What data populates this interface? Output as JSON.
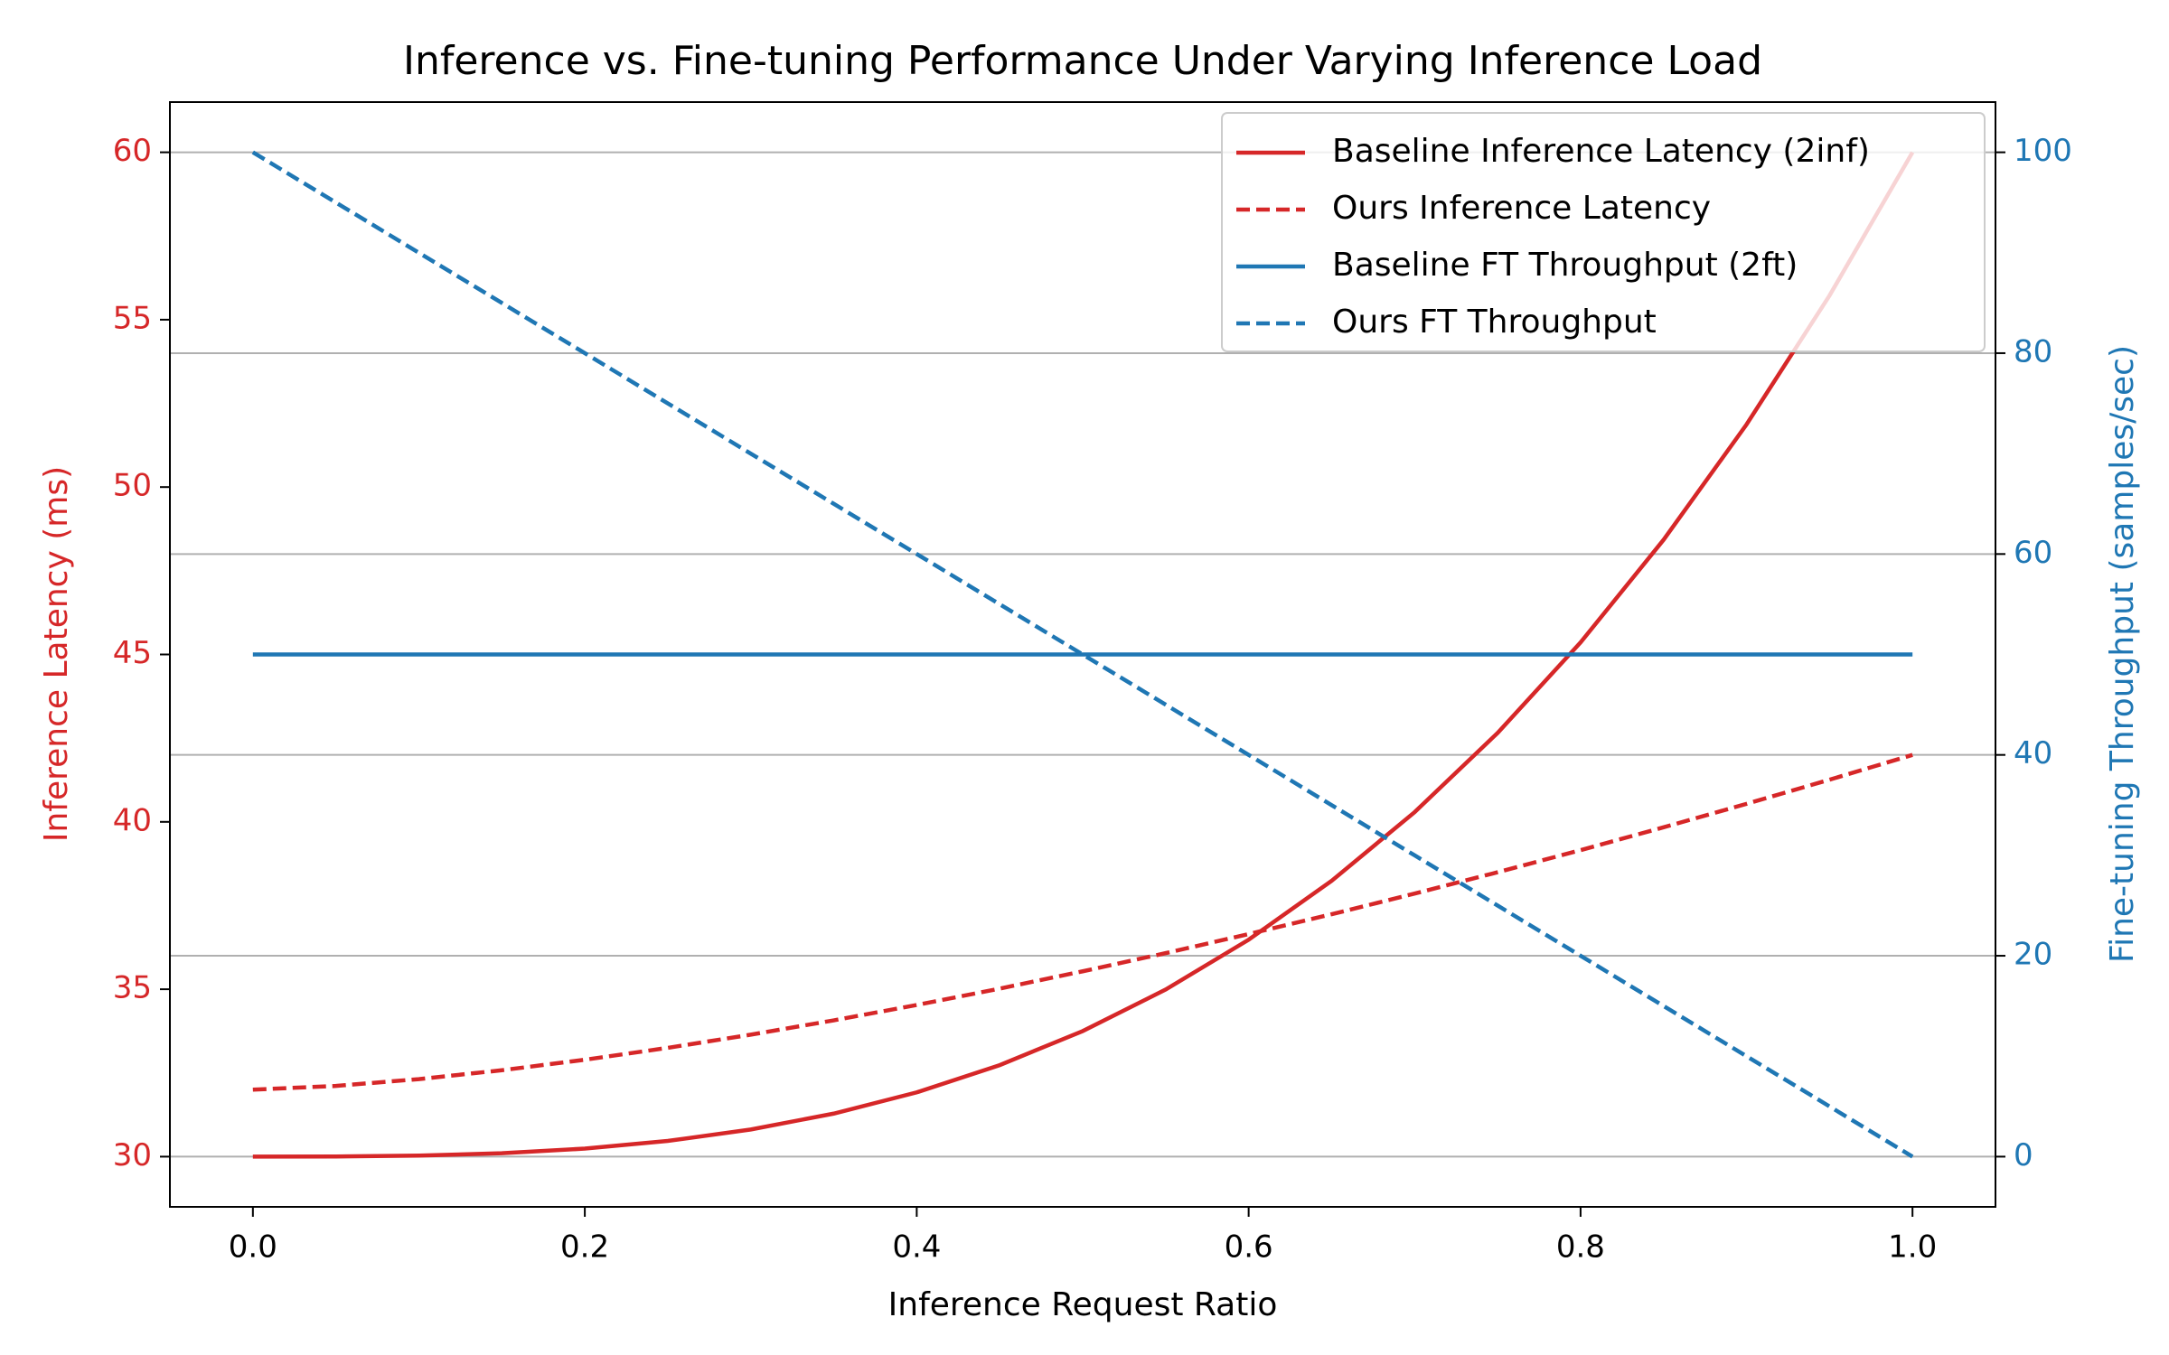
{
  "chart_data": {
    "type": "line",
    "title": "Inference vs. Fine-tuning Performance Under Varying Inference Load",
    "xlabel": "Inference Request Ratio",
    "ylabel": "Inference Latency (ms)",
    "y2label": "Fine-tuning Throughput (samples/sec)",
    "x": [
      0,
      0.05,
      0.1,
      0.15,
      0.2,
      0.25,
      0.3,
      0.35,
      0.4,
      0.45,
      0.5,
      0.55,
      0.6,
      0.65,
      0.7,
      0.75,
      0.8,
      0.85,
      0.9,
      0.95,
      1
    ],
    "series": [
      {
        "name": "Baseline Inference Latency (2inf)",
        "color": "#d62728",
        "dash": false,
        "axis": "y",
        "values": [
          30,
          30.004,
          30.03,
          30.101,
          30.24,
          30.469,
          30.81,
          31.286,
          31.92,
          32.734,
          33.75,
          34.991,
          36.48,
          38.239,
          40.29,
          42.656,
          45.36,
          48.424,
          51.87,
          55.721,
          60
        ]
      },
      {
        "name": "Ours Inference Latency",
        "color": "#d62728",
        "dash": true,
        "axis": "y",
        "values": [
          32,
          32.112,
          32.316,
          32.581,
          32.894,
          33.25,
          33.643,
          34.071,
          34.53,
          35.019,
          35.536,
          36.079,
          36.648,
          37.24,
          37.857,
          38.495,
          39.155,
          39.837,
          40.538,
          41.259,
          42
        ]
      },
      {
        "name": "Baseline FT Throughput (2ft)",
        "color": "#1f77b4",
        "dash": false,
        "axis": "y2",
        "values": [
          50,
          50,
          50,
          50,
          50,
          50,
          50,
          50,
          50,
          50,
          50,
          50,
          50,
          50,
          50,
          50,
          50,
          50,
          50,
          50,
          50
        ]
      },
      {
        "name": "Ours FT Throughput",
        "color": "#1f77b4",
        "dash": true,
        "axis": "y2",
        "values": [
          100,
          95,
          90,
          85,
          80,
          75,
          70,
          65,
          60,
          55,
          50,
          45,
          40,
          35,
          30,
          25,
          20,
          15,
          10,
          5,
          0
        ]
      }
    ],
    "xlim": [
      -0.05,
      1.05
    ],
    "xticks": [
      {
        "value": 0,
        "label": "0.0"
      },
      0.2,
      0.4,
      0.6,
      0.8,
      {
        "value": 1,
        "label": "1.0"
      }
    ],
    "ylim": [
      28.5,
      61.5
    ],
    "yticks": [
      30,
      35,
      40,
      45,
      50,
      55,
      60
    ],
    "y2lim": [
      -5,
      105
    ],
    "y2ticks": [
      0,
      20,
      40,
      60,
      80,
      100
    ],
    "ycolor": "#d62728",
    "y2color": "#1f77b4",
    "grid": "y2",
    "legend": "upper right"
  }
}
